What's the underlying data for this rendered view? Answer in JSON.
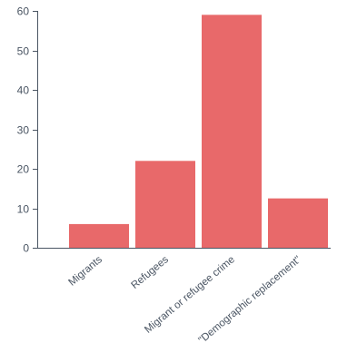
{
  "chart_data": {
    "type": "bar",
    "title": "",
    "xlabel": "",
    "ylabel": "",
    "categories": [
      "Migrants",
      "Refugees",
      "Migrant or refugee crime",
      "\"Demographic replacement\""
    ],
    "values": [
      6,
      22,
      59,
      12.5
    ],
    "ylim": [
      0,
      60
    ],
    "yticks": [
      0,
      10,
      20,
      30,
      40,
      50,
      60
    ],
    "grid": false,
    "legend": "none",
    "bar_color": "#e8696a",
    "axis_color": "#4a5563"
  }
}
